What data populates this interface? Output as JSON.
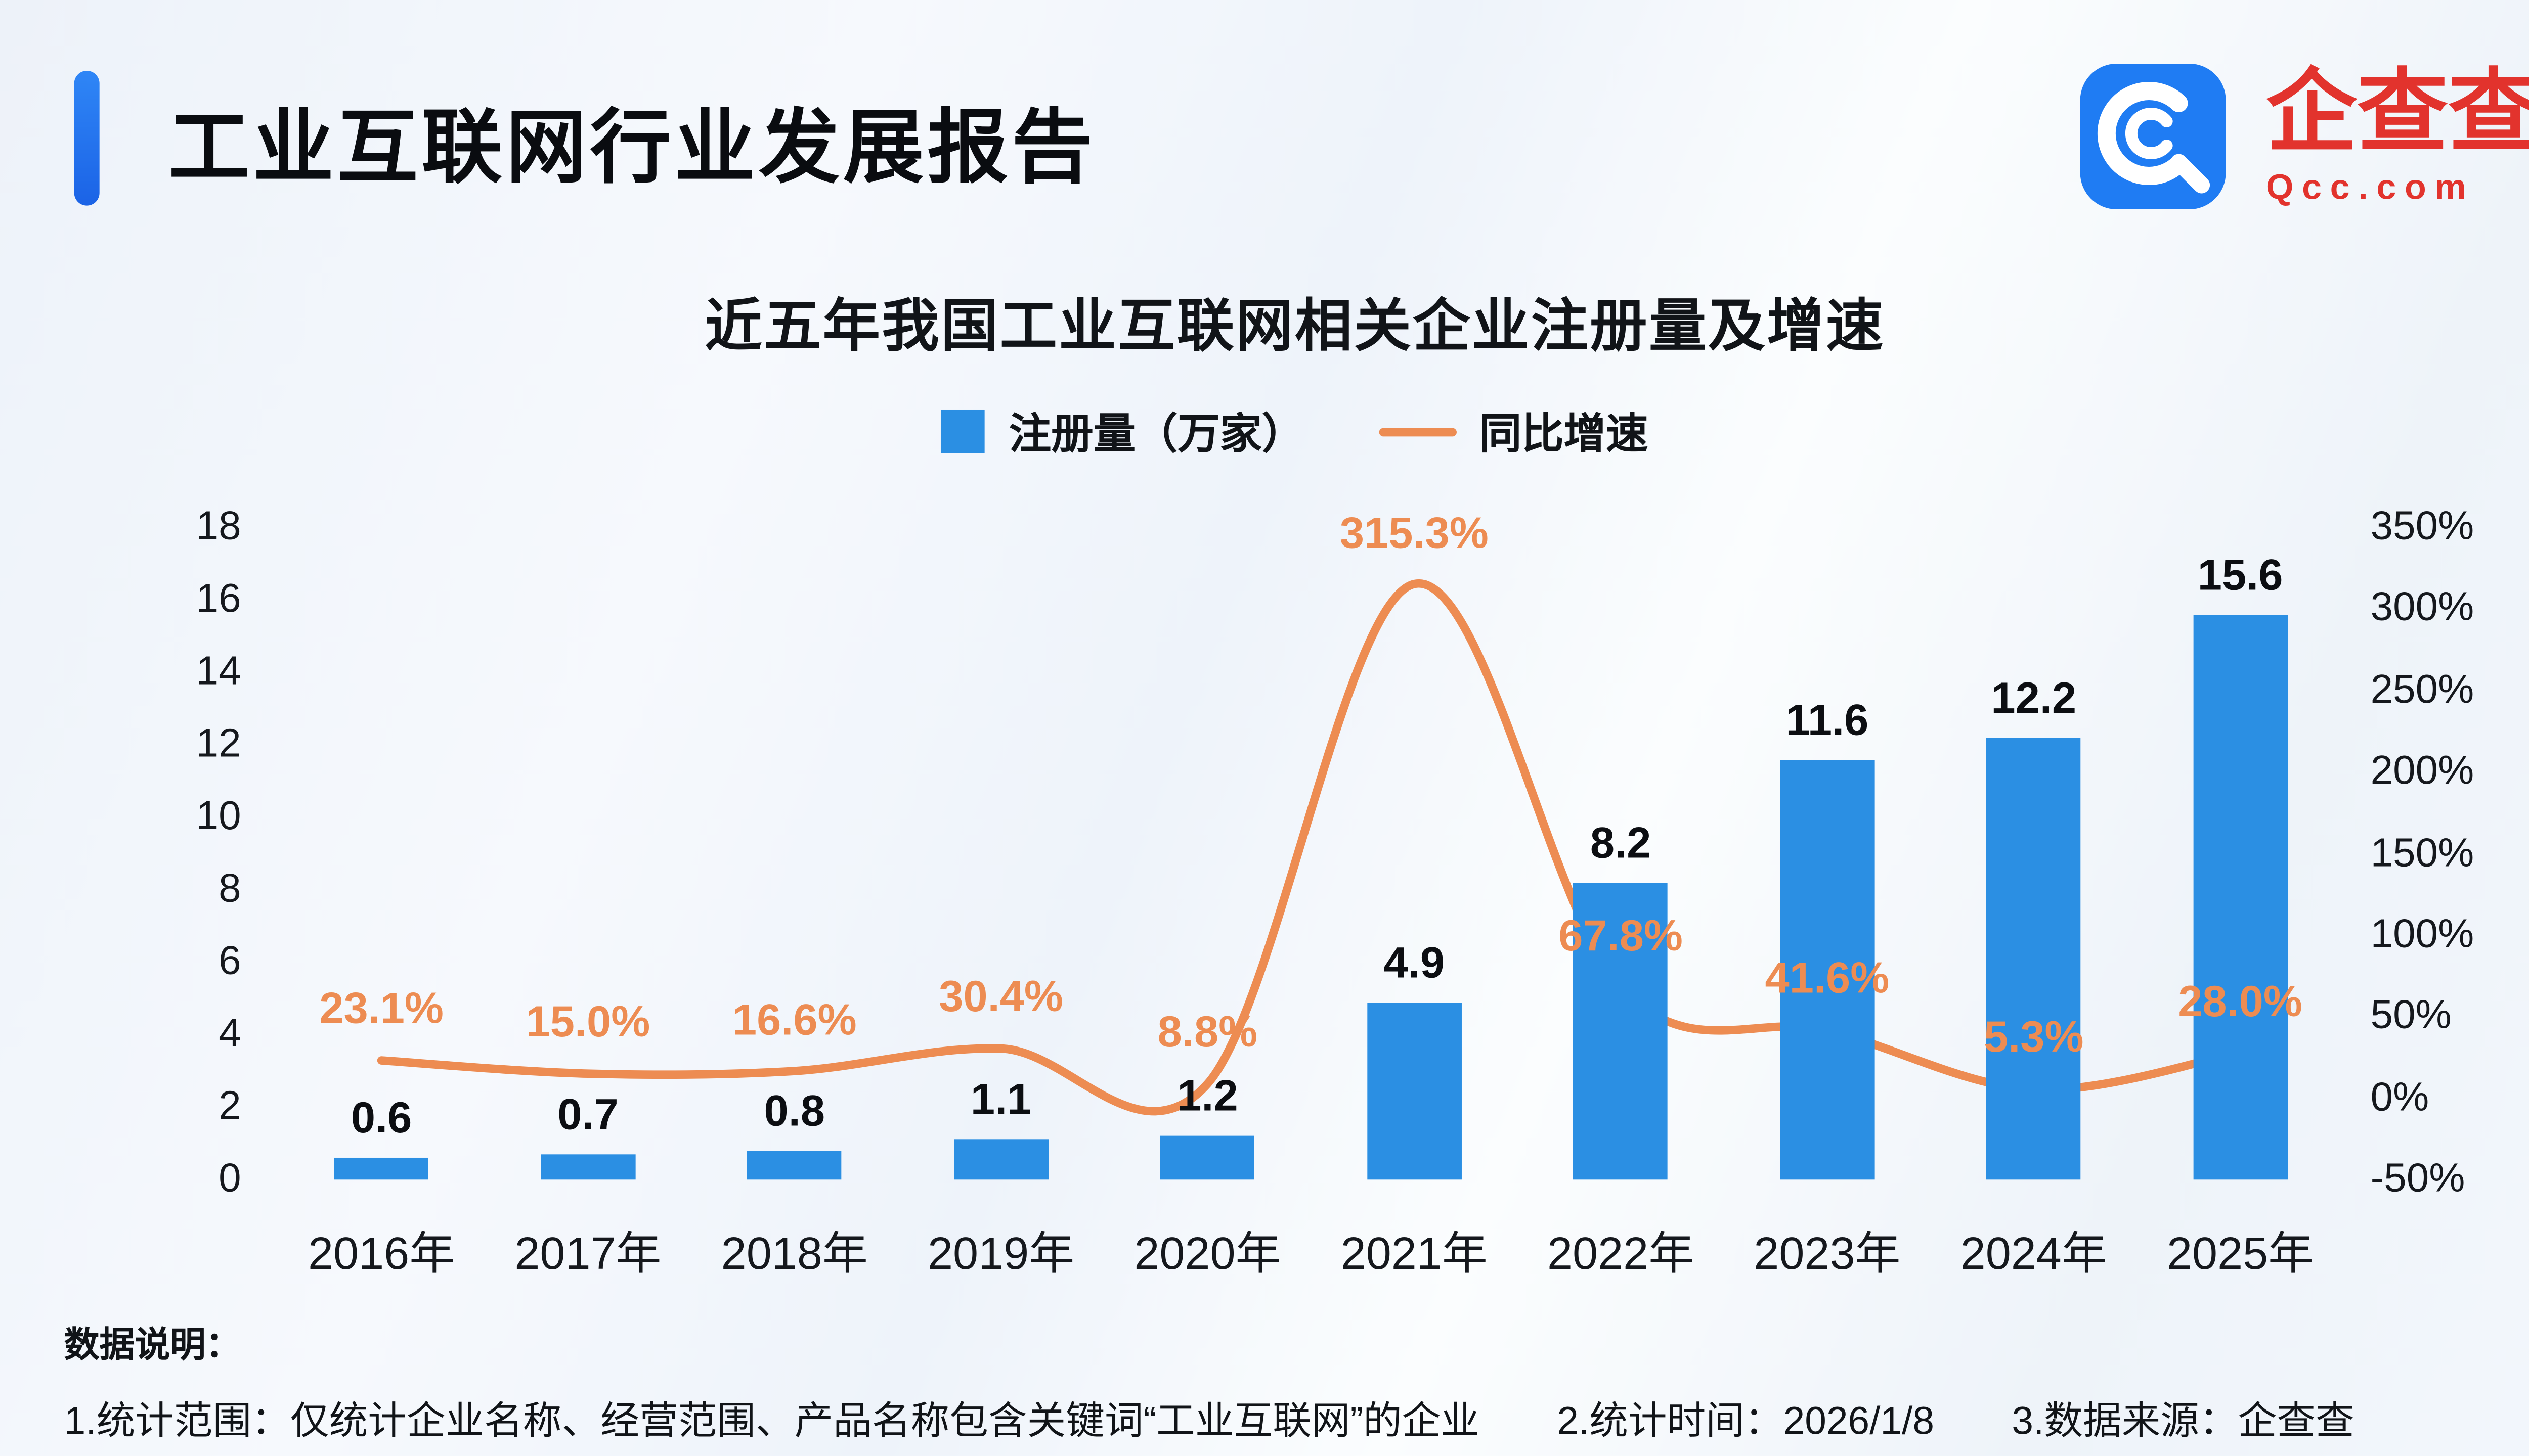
{
  "header": {
    "title": "工业互联网行业发展报告",
    "logo": {
      "name": "企查查",
      "domain": "Qcc.com",
      "icon_color": "#1f7cf3",
      "text_color": "#e2332d"
    }
  },
  "chart": {
    "title": "近五年我国工业互联网相关企业注册量及增速",
    "legend": [
      {
        "type": "bar",
        "label": "注册量（万家）",
        "color": "#2b8fe3"
      },
      {
        "type": "line",
        "label": "同比增速",
        "color": "#ed8c52"
      }
    ]
  },
  "chart_data": {
    "type": "bar",
    "subtype": "bar+line combo, dual axis",
    "title": "近五年我国工业互联网相关企业注册量及增速",
    "categories": [
      "2016年",
      "2017年",
      "2018年",
      "2019年",
      "2020年",
      "2021年",
      "2022年",
      "2023年",
      "2024年",
      "2025年"
    ],
    "series": [
      {
        "name": "注册量（万家）",
        "type": "bar",
        "axis": "left",
        "color": "#2b8fe3",
        "values": [
          0.6,
          0.7,
          0.8,
          1.1,
          1.2,
          4.9,
          8.2,
          11.6,
          12.2,
          15.6
        ],
        "value_labels": [
          "0.6",
          "0.7",
          "0.8",
          "1.1",
          "1.2",
          "4.9",
          "8.2",
          "11.6",
          "12.2",
          "15.6"
        ]
      },
      {
        "name": "同比增速",
        "type": "line",
        "axis": "right",
        "color": "#ed8c52",
        "values": [
          23.1,
          15.0,
          16.6,
          30.4,
          8.8,
          315.3,
          67.8,
          41.6,
          5.3,
          28.0
        ],
        "labels": [
          "23.1%",
          "15.0%",
          "16.6%",
          "30.4%",
          "8.8%",
          "315.3%",
          "67.8%",
          "41.6%",
          "5.3%",
          "28.0%"
        ]
      }
    ],
    "left_axis": {
      "min": 0,
      "max": 18,
      "ticks": [
        0,
        2,
        4,
        6,
        8,
        10,
        12,
        14,
        16,
        18
      ]
    },
    "right_axis": {
      "min": -50,
      "max": 350,
      "ticks": [
        "350%",
        "300%",
        "250%",
        "200%",
        "150%",
        "100%",
        "50%",
        "0%",
        "-50%"
      ]
    },
    "grid": false,
    "legend_position": "top-center"
  },
  "footer": {
    "label": "数据说明：",
    "notes": [
      "1.统计范围：仅统计企业名称、经营范围、产品名称包含关键词“工业互联网”的企业",
      "2.统计时间：2026/1/8",
      "3.数据来源：企查查"
    ]
  }
}
